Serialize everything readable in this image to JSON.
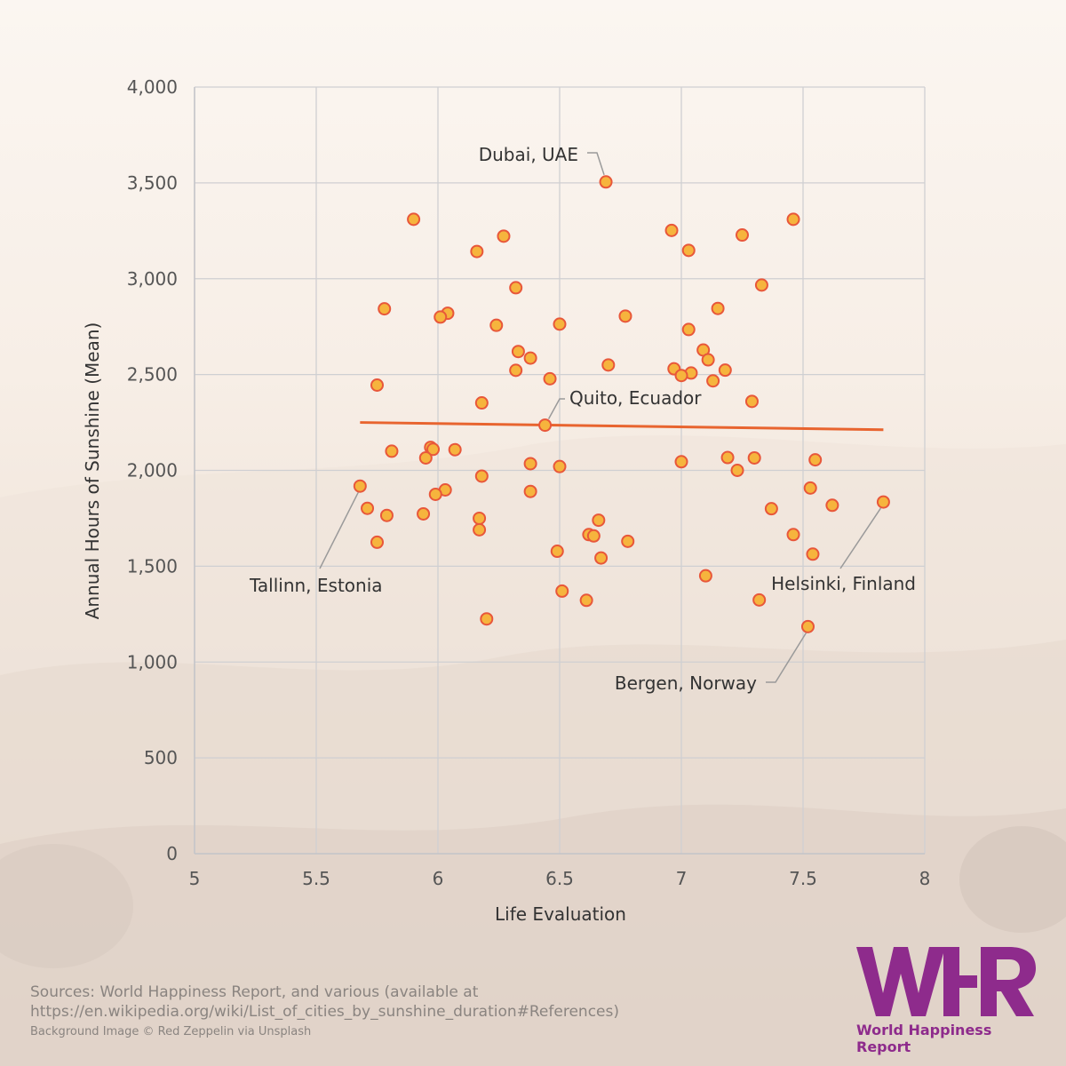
{
  "chart_data": {
    "type": "scatter",
    "xlabel": "Life Evaluation",
    "ylabel": "Annual Hours of Sunshine (Mean)",
    "xlim": [
      5,
      8
    ],
    "ylim": [
      0,
      4000
    ],
    "x_ticks": [
      "5",
      "5.5",
      "6",
      "6.5",
      "7",
      "7.5",
      "8"
    ],
    "y_ticks": [
      "0",
      "500",
      "1,000",
      "1,500",
      "2,000",
      "2,500",
      "3,000",
      "3,500",
      "4,000"
    ],
    "grid": true,
    "point_color": "#f6b43d",
    "point_stroke": "#e8573a",
    "trend_color": "#e8642f",
    "trend_line": [
      [
        5.68,
        2250
      ],
      [
        7.83,
        2212
      ]
    ],
    "points": [
      [
        6.69,
        3505
      ],
      [
        5.9,
        3310
      ],
      [
        7.46,
        3310
      ],
      [
        6.96,
        3252
      ],
      [
        7.25,
        3228
      ],
      [
        6.27,
        3222
      ],
      [
        7.03,
        3148
      ],
      [
        6.16,
        3142
      ],
      [
        7.33,
        2967
      ],
      [
        6.32,
        2953
      ],
      [
        5.78,
        2843
      ],
      [
        7.15,
        2845
      ],
      [
        6.04,
        2820
      ],
      [
        6.01,
        2800
      ],
      [
        6.77,
        2805
      ],
      [
        6.5,
        2763
      ],
      [
        6.24,
        2757
      ],
      [
        7.03,
        2735
      ],
      [
        7.09,
        2628
      ],
      [
        6.33,
        2620
      ],
      [
        6.38,
        2586
      ],
      [
        7.11,
        2577
      ],
      [
        6.7,
        2550
      ],
      [
        6.97,
        2530
      ],
      [
        6.32,
        2522
      ],
      [
        7.18,
        2523
      ],
      [
        7.04,
        2508
      ],
      [
        7.0,
        2495
      ],
      [
        6.46,
        2478
      ],
      [
        7.13,
        2467
      ],
      [
        5.75,
        2445
      ],
      [
        7.29,
        2360
      ],
      [
        6.18,
        2352
      ],
      [
        6.44,
        2236
      ],
      [
        5.97,
        2120
      ],
      [
        5.81,
        2100
      ],
      [
        5.98,
        2110
      ],
      [
        6.07,
        2108
      ],
      [
        7.19,
        2067
      ],
      [
        7.3,
        2065
      ],
      [
        5.95,
        2065
      ],
      [
        7.55,
        2055
      ],
      [
        7.0,
        2045
      ],
      [
        6.38,
        2035
      ],
      [
        6.5,
        2020
      ],
      [
        7.23,
        2000
      ],
      [
        6.18,
        1970
      ],
      [
        5.68,
        1918
      ],
      [
        7.53,
        1908
      ],
      [
        6.03,
        1898
      ],
      [
        6.38,
        1890
      ],
      [
        5.99,
        1875
      ],
      [
        7.83,
        1835
      ],
      [
        7.62,
        1818
      ],
      [
        5.71,
        1802
      ],
      [
        7.37,
        1800
      ],
      [
        5.94,
        1773
      ],
      [
        5.79,
        1765
      ],
      [
        6.17,
        1750
      ],
      [
        6.66,
        1740
      ],
      [
        6.17,
        1690
      ],
      [
        6.62,
        1665
      ],
      [
        7.46,
        1665
      ],
      [
        6.64,
        1658
      ],
      [
        6.78,
        1630
      ],
      [
        5.75,
        1625
      ],
      [
        6.49,
        1578
      ],
      [
        7.54,
        1563
      ],
      [
        6.67,
        1543
      ],
      [
        7.1,
        1450
      ],
      [
        6.51,
        1370
      ],
      [
        6.61,
        1322
      ],
      [
        7.32,
        1324
      ],
      [
        6.2,
        1225
      ],
      [
        7.52,
        1185
      ]
    ],
    "annotations": [
      {
        "label": "Dubai, UAE",
        "x": 6.69,
        "y": 3505
      },
      {
        "label": "Quito, Ecuador",
        "x": 6.44,
        "y": 2236
      },
      {
        "label": "Tallinn, Estonia",
        "x": 5.68,
        "y": 1918
      },
      {
        "label": "Helsinki, Finland",
        "x": 7.83,
        "y": 1835
      },
      {
        "label": "Bergen, Norway",
        "x": 7.52,
        "y": 1185
      }
    ]
  },
  "footer": {
    "sources": "Sources: World Happiness Report, and various (available at https://en.wikipedia.org/wiki/List_of_cities_by_sunshine_duration#References)",
    "credit": "Background Image © Red Zeppelin via Unsplash"
  },
  "logo": {
    "caption": "World Happiness Report",
    "color": "#8e2b8c"
  }
}
